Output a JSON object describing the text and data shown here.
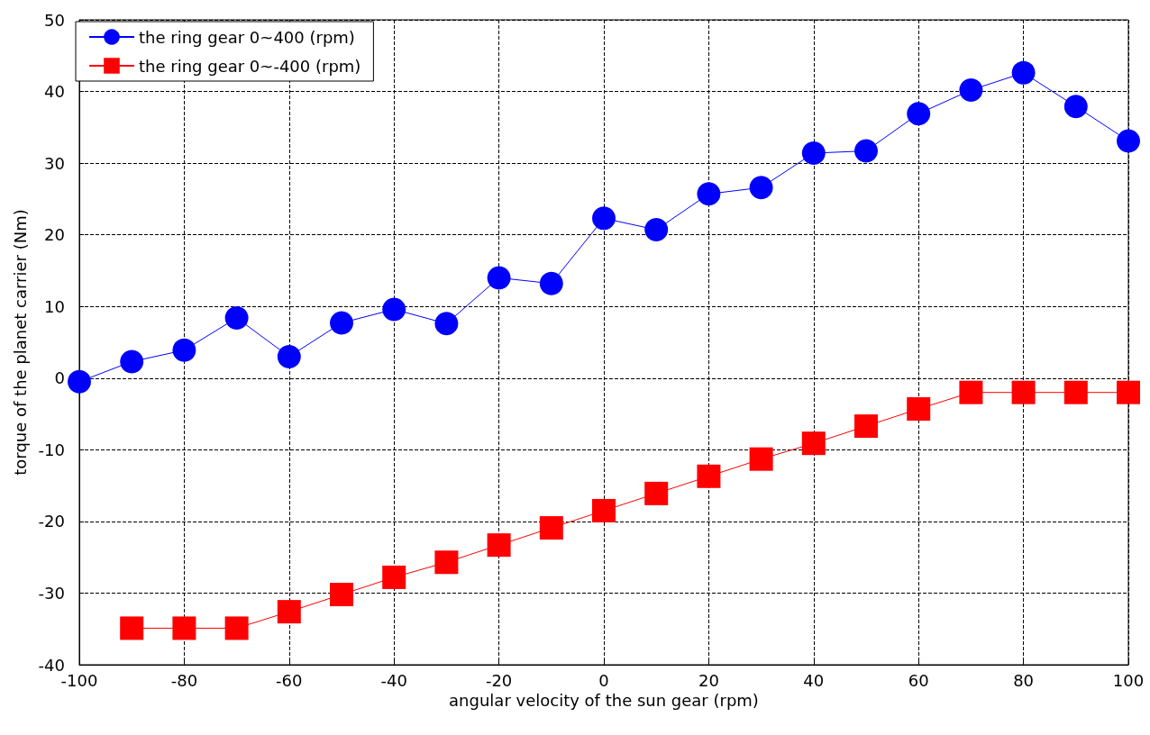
{
  "chart_data": {
    "type": "line",
    "xlabel": "angular velocity of the sun gear (rpm)",
    "ylabel": "torque of the planet carrier (Nm)",
    "x": [
      -100,
      -90,
      -80,
      -70,
      -60,
      -50,
      -40,
      -30,
      -20,
      -10,
      0,
      10,
      20,
      30,
      40,
      50,
      60,
      70,
      80,
      90,
      100
    ],
    "series": [
      {
        "name": "the ring gear 0~400 (rpm)",
        "color": "#0000ff",
        "marker": "circle",
        "values": [
          -0.5,
          2.3,
          3.9,
          8.4,
          3.0,
          7.7,
          9.6,
          7.6,
          14.0,
          13.2,
          22.3,
          20.7,
          25.7,
          26.6,
          31.4,
          31.7,
          36.9,
          40.2,
          42.6,
          37.9,
          33.1
        ]
      },
      {
        "name": "the ring gear 0~-400 (rpm)",
        "color": "#ff0000",
        "marker": "square",
        "values": [
          null,
          -34.9,
          -34.9,
          -34.9,
          -32.6,
          -30.2,
          -27.8,
          -25.7,
          -23.3,
          -20.9,
          -18.5,
          -16.1,
          -13.7,
          -11.3,
          -9.1,
          -6.7,
          -4.3,
          -2.0,
          -2.0,
          -2.0,
          -2.0
        ]
      }
    ],
    "xlim": [
      -100,
      100
    ],
    "xticks": [
      -100,
      -80,
      -60,
      -40,
      -20,
      0,
      20,
      40,
      60,
      80,
      100
    ],
    "ylim": [
      -40,
      50
    ],
    "yticks": [
      -40,
      -30,
      -20,
      -10,
      0,
      10,
      20,
      30,
      40,
      50
    ],
    "grid": true,
    "legend": "top left",
    "line_style": "solid"
  }
}
